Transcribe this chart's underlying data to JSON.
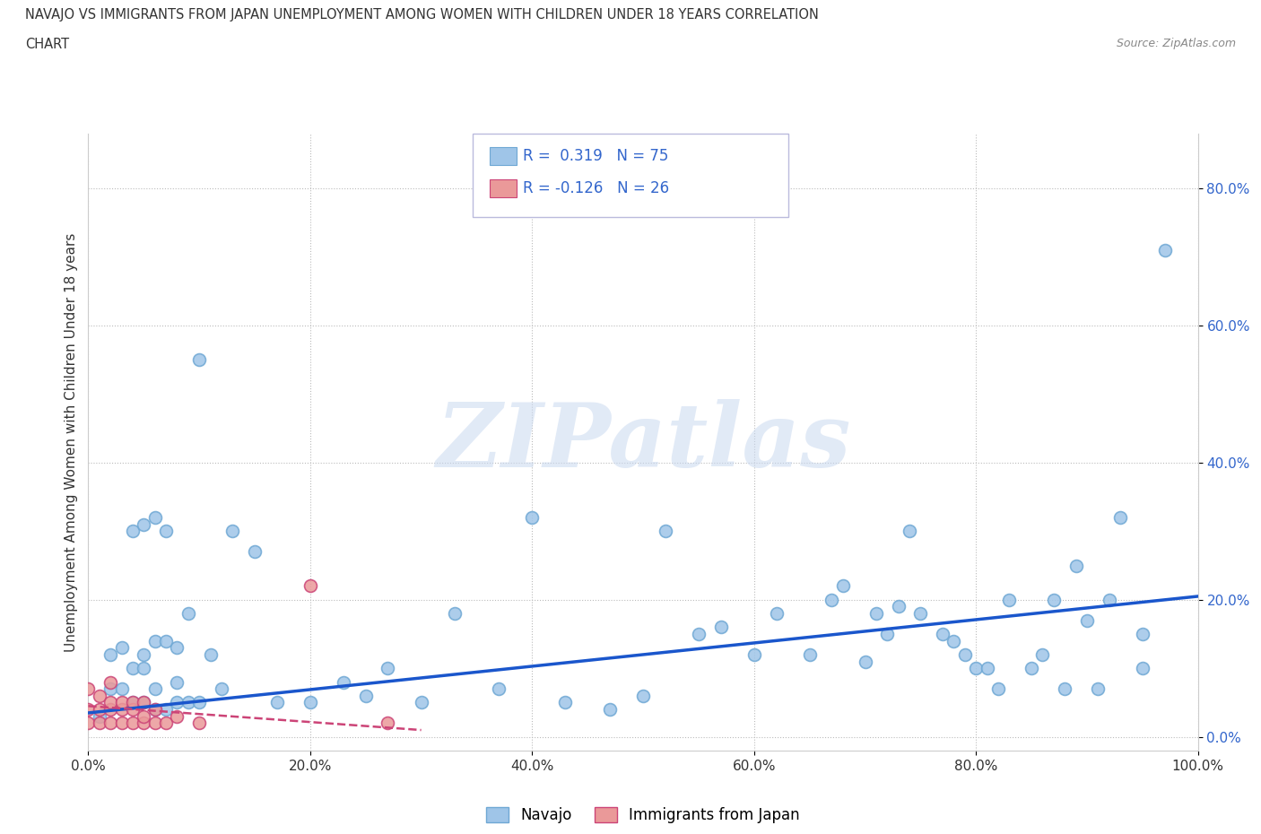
{
  "title_line1": "NAVAJO VS IMMIGRANTS FROM JAPAN UNEMPLOYMENT AMONG WOMEN WITH CHILDREN UNDER 18 YEARS CORRELATION",
  "title_line2": "CHART",
  "source_text": "Source: ZipAtlas.com",
  "ylabel": "Unemployment Among Women with Children Under 18 years",
  "xlim": [
    0.0,
    1.0
  ],
  "ylim": [
    -0.02,
    0.88
  ],
  "xticks": [
    0.0,
    0.2,
    0.4,
    0.6,
    0.8,
    1.0
  ],
  "xtick_labels": [
    "0.0%",
    "20.0%",
    "40.0%",
    "60.0%",
    "80.0%",
    "100.0%"
  ],
  "yticks": [
    0.0,
    0.2,
    0.4,
    0.6,
    0.8
  ],
  "ytick_labels": [
    "0.0%",
    "20.0%",
    "40.0%",
    "60.0%",
    "80.0%"
  ],
  "navajo_color": "#9fc5e8",
  "japan_color": "#ea9999",
  "navajo_edge": "#6fa8d4",
  "japan_edge": "#cc4477",
  "trendline_navajo_color": "#1a56cc",
  "trendline_japan_color": "#cc4477",
  "watermark_color": "#c9d9f0",
  "navajo_x": [
    0.01,
    0.02,
    0.02,
    0.03,
    0.03,
    0.04,
    0.04,
    0.04,
    0.05,
    0.05,
    0.05,
    0.05,
    0.06,
    0.06,
    0.06,
    0.06,
    0.07,
    0.07,
    0.07,
    0.08,
    0.08,
    0.08,
    0.09,
    0.09,
    0.1,
    0.1,
    0.11,
    0.12,
    0.13,
    0.15,
    0.17,
    0.2,
    0.23,
    0.25,
    0.27,
    0.3,
    0.33,
    0.37,
    0.4,
    0.43,
    0.47,
    0.5,
    0.52,
    0.55,
    0.57,
    0.6,
    0.62,
    0.65,
    0.67,
    0.68,
    0.7,
    0.71,
    0.72,
    0.73,
    0.74,
    0.75,
    0.77,
    0.78,
    0.79,
    0.8,
    0.81,
    0.82,
    0.83,
    0.85,
    0.86,
    0.87,
    0.88,
    0.89,
    0.9,
    0.91,
    0.92,
    0.93,
    0.95,
    0.95,
    0.97
  ],
  "navajo_y": [
    0.03,
    0.07,
    0.12,
    0.07,
    0.13,
    0.05,
    0.1,
    0.3,
    0.05,
    0.1,
    0.12,
    0.31,
    0.04,
    0.07,
    0.14,
    0.32,
    0.04,
    0.14,
    0.3,
    0.05,
    0.08,
    0.13,
    0.05,
    0.18,
    0.05,
    0.55,
    0.12,
    0.07,
    0.3,
    0.27,
    0.05,
    0.05,
    0.08,
    0.06,
    0.1,
    0.05,
    0.18,
    0.07,
    0.32,
    0.05,
    0.04,
    0.06,
    0.3,
    0.15,
    0.16,
    0.12,
    0.18,
    0.12,
    0.2,
    0.22,
    0.11,
    0.18,
    0.15,
    0.19,
    0.3,
    0.18,
    0.15,
    0.14,
    0.12,
    0.1,
    0.1,
    0.07,
    0.2,
    0.1,
    0.12,
    0.2,
    0.07,
    0.25,
    0.17,
    0.07,
    0.2,
    0.32,
    0.1,
    0.15,
    0.71
  ],
  "japan_x": [
    0.0,
    0.0,
    0.0,
    0.01,
    0.01,
    0.01,
    0.02,
    0.02,
    0.02,
    0.02,
    0.03,
    0.03,
    0.03,
    0.04,
    0.04,
    0.04,
    0.05,
    0.05,
    0.05,
    0.06,
    0.06,
    0.07,
    0.08,
    0.1,
    0.2,
    0.27
  ],
  "japan_y": [
    0.02,
    0.04,
    0.07,
    0.02,
    0.04,
    0.06,
    0.02,
    0.04,
    0.05,
    0.08,
    0.02,
    0.04,
    0.05,
    0.02,
    0.04,
    0.05,
    0.02,
    0.03,
    0.05,
    0.02,
    0.04,
    0.02,
    0.03,
    0.02,
    0.22,
    0.02
  ],
  "trendline_navajo_x0": 0.0,
  "trendline_navajo_y0": 0.035,
  "trendline_navajo_x1": 1.0,
  "trendline_navajo_y1": 0.205,
  "trendline_japan_x0": 0.0,
  "trendline_japan_y0": 0.045,
  "trendline_japan_x1": 0.3,
  "trendline_japan_y1": 0.01
}
